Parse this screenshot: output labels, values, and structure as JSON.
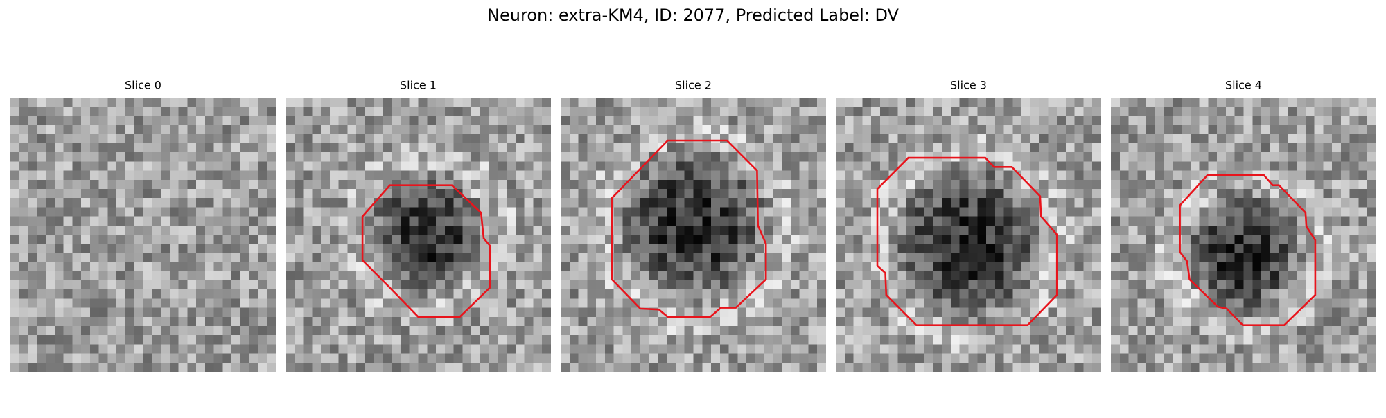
{
  "header": {
    "title": "Neuron: extra-KM4, ID: 2077, Predicted Label: DV"
  },
  "panels": [
    {
      "title": "Slice 0"
    },
    {
      "title": "Slice 1"
    },
    {
      "title": "Slice 2"
    },
    {
      "title": "Slice 3"
    },
    {
      "title": "Slice 4"
    }
  ]
}
